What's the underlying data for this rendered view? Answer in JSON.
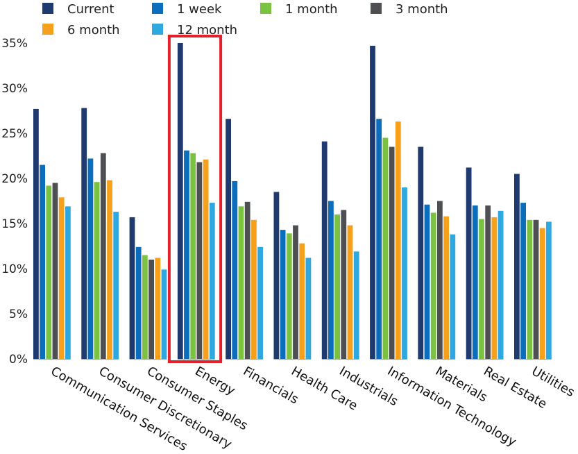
{
  "chart_data": {
    "type": "bar",
    "categories": [
      "Communication Services",
      "Consumer Discretionary",
      "Consumer Staples",
      "Energy",
      "Financials",
      "Health Care",
      "Industrials",
      "Information Technology",
      "Materials",
      "Real Estate",
      "Utilities"
    ],
    "series": [
      {
        "name": "Current",
        "color": "#1f3a6e",
        "values": [
          27.7,
          27.8,
          15.7,
          35.0,
          26.6,
          18.5,
          24.1,
          34.7,
          23.5,
          21.2,
          20.5
        ]
      },
      {
        "name": "1 week",
        "color": "#0a6ebd",
        "values": [
          21.5,
          22.2,
          12.4,
          23.1,
          19.7,
          14.3,
          17.5,
          26.6,
          17.1,
          17.0,
          17.3
        ]
      },
      {
        "name": "1 month",
        "color": "#7cc242",
        "values": [
          19.2,
          19.6,
          11.5,
          22.8,
          16.9,
          13.9,
          16.0,
          24.5,
          16.2,
          15.5,
          15.4
        ]
      },
      {
        "name": "3 month",
        "color": "#4d4f53",
        "values": [
          19.5,
          22.8,
          11.0,
          21.8,
          17.4,
          14.8,
          16.5,
          23.5,
          17.5,
          17.0,
          15.4
        ]
      },
      {
        "name": "6 month",
        "color": "#f7a01c",
        "values": [
          17.9,
          19.8,
          11.2,
          22.1,
          15.4,
          12.8,
          14.8,
          26.3,
          15.8,
          15.7,
          14.5
        ]
      },
      {
        "name": "12 month",
        "color": "#2fa8e0",
        "values": [
          16.9,
          16.3,
          9.9,
          17.3,
          12.4,
          11.2,
          11.9,
          19.0,
          13.8,
          16.4,
          15.2
        ]
      }
    ],
    "y_ticks": [
      "0%",
      "5%",
      "10%",
      "15%",
      "20%",
      "25%",
      "30%",
      "35%"
    ],
    "ylim": [
      0,
      35
    ],
    "legend_position": "top",
    "grid": false,
    "highlight": {
      "category": "Energy",
      "color": "#e3212b"
    }
  }
}
